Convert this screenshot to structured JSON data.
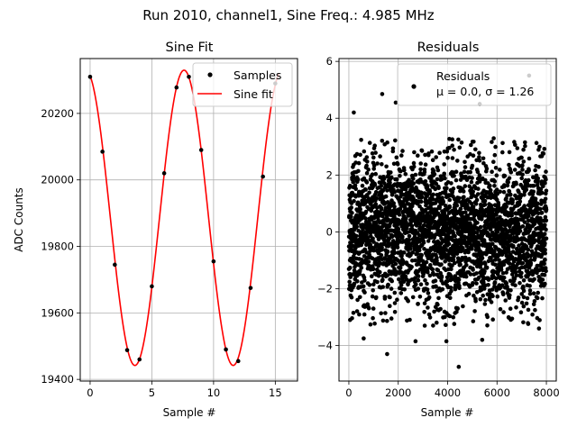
{
  "suptitle": "Run 2010, channel1, Sine Freq.: 4.985 MHz",
  "chart_data": [
    {
      "type": "line",
      "title": "Sine Fit",
      "xlabel": "Sample #",
      "ylabel": "ADC Counts",
      "xlim": [
        -0.8,
        16.8
      ],
      "ylim": [
        19395,
        20365
      ],
      "xticks": [
        0,
        5,
        10,
        15
      ],
      "yticks": [
        19400,
        19600,
        19800,
        20000,
        20200
      ],
      "grid": true,
      "legend_position": "top-right",
      "series": [
        {
          "name": "Samples",
          "style": "points",
          "color": "#000000",
          "x": [
            0,
            1,
            2,
            3,
            4,
            5,
            6,
            7,
            8,
            9,
            10,
            11,
            12,
            13,
            14,
            15
          ],
          "y": [
            20310,
            20085,
            19745,
            19488,
            19460,
            19680,
            20020,
            20278,
            20310,
            20090,
            19755,
            19490,
            19455,
            19675,
            20010,
            20290
          ]
        },
        {
          "name": "Sine fit",
          "style": "line",
          "color": "#ff0000",
          "model": {
            "offset": 19886,
            "amplitude": 444,
            "period": 7.96,
            "peak_at": 7.61
          },
          "x_range": [
            0,
            15.3
          ]
        }
      ]
    },
    {
      "type": "scatter",
      "title": "Residuals",
      "xlabel": "Sample #",
      "ylabel": "",
      "xlim": [
        -400,
        8400
      ],
      "ylim": [
        -5.25,
        6.1
      ],
      "xticks": [
        0,
        2000,
        4000,
        6000,
        8000
      ],
      "yticks": [
        -4,
        -2,
        0,
        2,
        4,
        6
      ],
      "grid": true,
      "legend_position": "top-right",
      "series": [
        {
          "name": "Residuals",
          "color": "#000000",
          "count": 8000,
          "mean": 0.0,
          "std": 1.26,
          "highlighted_points": [
            {
              "x": 200,
              "y": 4.2
            },
            {
              "x": 1350,
              "y": 4.85
            },
            {
              "x": 1900,
              "y": 4.55
            },
            {
              "x": 2650,
              "y": 5.1
            },
            {
              "x": 5300,
              "y": 4.5
            },
            {
              "x": 7300,
              "y": 5.5
            },
            {
              "x": 1550,
              "y": -4.3
            },
            {
              "x": 4450,
              "y": -4.75
            },
            {
              "x": 2700,
              "y": -3.85
            },
            {
              "x": 3950,
              "y": -3.85
            },
            {
              "x": 5400,
              "y": -3.8
            },
            {
              "x": 600,
              "y": -3.75
            },
            {
              "x": 50,
              "y": -3.1
            },
            {
              "x": 7700,
              "y": -3.4
            }
          ]
        }
      ],
      "legend_text": {
        "line1": "Residuals",
        "line2": "μ = 0.0, σ = 1.26"
      }
    }
  ]
}
